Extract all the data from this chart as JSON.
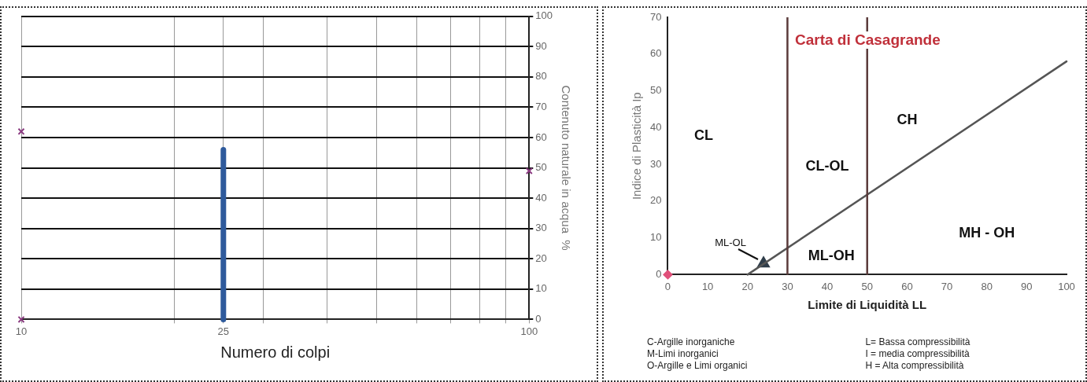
{
  "chart_data": [
    {
      "type": "line",
      "xlabel": "Numero di colpi",
      "ylabel": "Contenuto naturale in acqua  %",
      "log": "x",
      "xlim": [
        10,
        100
      ],
      "ylim": [
        0,
        100
      ],
      "xticks": [
        10,
        {
          "value": 20,
          "label": null
        },
        25,
        {
          "value": 30,
          "label": null
        },
        {
          "value": 40,
          "label": null
        },
        {
          "value": 50,
          "label": null
        },
        {
          "value": 60,
          "label": null
        },
        {
          "value": 70,
          "label": null
        },
        {
          "value": 80,
          "label": null
        },
        {
          "value": 90,
          "label": null
        },
        100
      ],
      "yticks": [
        0,
        10,
        20,
        30,
        40,
        50,
        60,
        70,
        80,
        90,
        100
      ],
      "grid": true,
      "legend": false,
      "series": [
        {
          "color": "#2e5a9c",
          "x": [
            25,
            25
          ],
          "values": [
            0,
            56
          ],
          "marker": "none"
        },
        {
          "type": "scatter",
          "color": "#8a3a80",
          "x": [
            10,
            10,
            100
          ],
          "values": [
            62,
            0,
            49
          ],
          "marker": "cross"
        }
      ]
    },
    {
      "type": "line",
      "title": "Carta di Casagrande",
      "xlabel": "Limite di Liquidità LL",
      "ylabel": "Indice di Plasticità Ip",
      "xlim": [
        0,
        100
      ],
      "ylim": [
        0,
        70
      ],
      "xticks": [
        0,
        10,
        20,
        30,
        40,
        50,
        60,
        70,
        80,
        90,
        100
      ],
      "yticks": [
        0,
        10,
        20,
        30,
        40,
        50,
        60,
        70
      ],
      "grid": false,
      "legend": false,
      "series": [
        {
          "color": "#555555",
          "x": [
            20,
            100
          ],
          "values": [
            0,
            58
          ],
          "marker": "none"
        },
        {
          "type": "scatter",
          "color": "#e0507a",
          "x": [
            0
          ],
          "values": [
            0
          ],
          "marker": "diamond"
        },
        {
          "type": "scatter",
          "color": "#2f3d4a",
          "x": [
            24
          ],
          "values": [
            3
          ],
          "marker": "triangle"
        }
      ],
      "ref_lines": [
        {
          "axis": "x",
          "value": 30,
          "color": "#5a3a3a"
        },
        {
          "axis": "x",
          "value": 50,
          "color": "#5a3a3a"
        }
      ],
      "annotations": [
        "CL",
        "CL-OL",
        "CH",
        "ML-OH",
        "MH - OH",
        {
          "text": "ML-OL",
          "x": 24,
          "y": 3
        },
        "C-Argille inorganiche",
        "M-Limi inorganici",
        "O-Argille e Limi  organici",
        "L= Bassa compressibilità",
        "I = media compressibilità",
        "H = Alta compressibilità"
      ]
    }
  ]
}
